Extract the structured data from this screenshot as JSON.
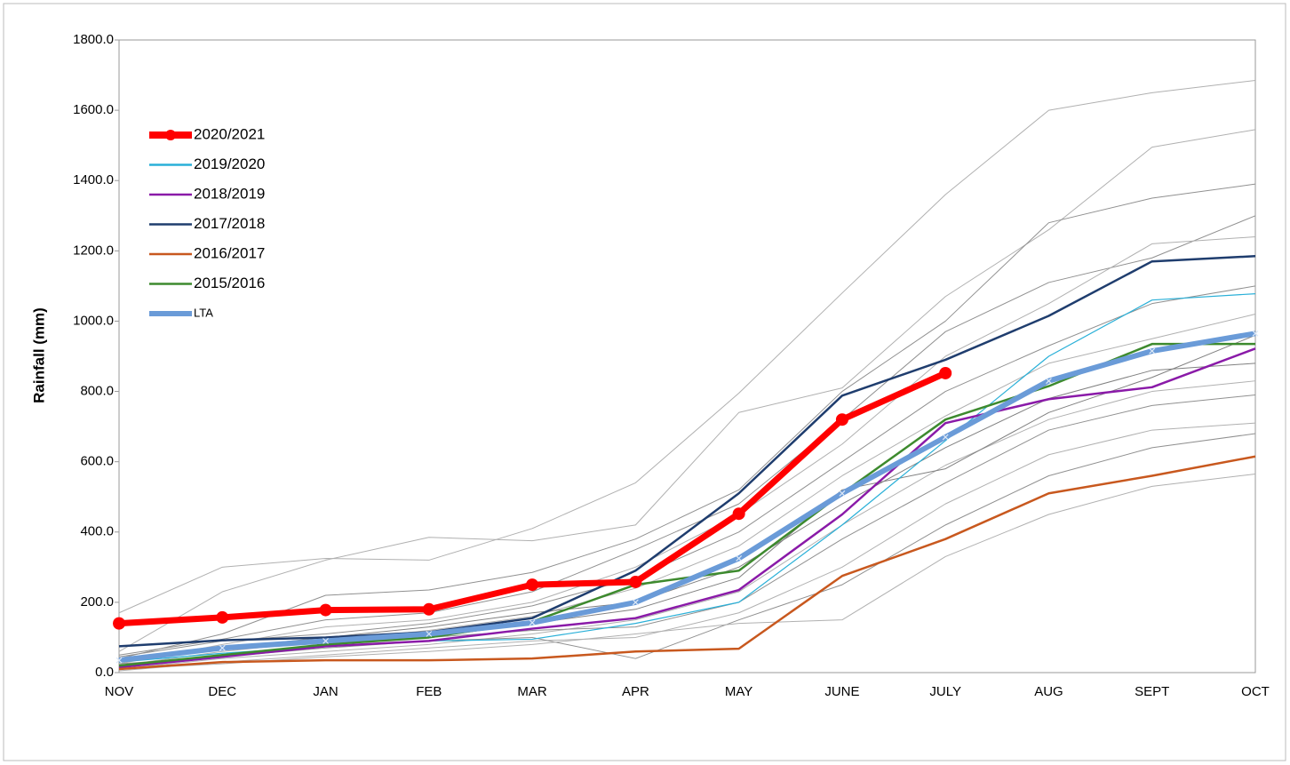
{
  "chart_data": {
    "type": "line",
    "y_label": "Rainfall (mm)",
    "categories": [
      "NOV",
      "DEC",
      "JAN",
      "FEB",
      "MAR",
      "APR",
      "MAY",
      "JUNE",
      "JULY",
      "AUG",
      "SEPT",
      "OCT"
    ],
    "ylim": [
      0,
      1800
    ],
    "yticks": [
      {
        "value": 0,
        "label": "0.0"
      },
      {
        "value": 200,
        "label": "200.0"
      },
      {
        "value": 400,
        "label": "400.0"
      },
      {
        "value": 600,
        "label": "600.0"
      },
      {
        "value": 800,
        "label": "800.0"
      },
      {
        "value": 1000,
        "label": "1000.0"
      },
      {
        "value": 1200,
        "label": "1200.0"
      },
      {
        "value": 1400,
        "label": "1400.0"
      },
      {
        "value": 1600,
        "label": "1600.0"
      },
      {
        "value": 1800,
        "label": "1800.0"
      }
    ],
    "legend": "upper left",
    "series": [
      {
        "color": "#b0b0b0",
        "values": [
          170,
          300,
          325,
          320,
          410,
          540,
          795,
          1080,
          1360,
          1600,
          1650,
          1685
        ]
      },
      {
        "color": "#b0b0b0",
        "values": [
          60,
          230,
          320,
          385,
          375,
          420,
          740,
          810,
          1070,
          1260,
          1495,
          1545
        ]
      },
      {
        "color": "#909090",
        "values": [
          40,
          110,
          220,
          235,
          285,
          380,
          520,
          800,
          1000,
          1280,
          1350,
          1390
        ]
      },
      {
        "color": "#909090",
        "values": [
          50,
          95,
          150,
          170,
          230,
          350,
          480,
          720,
          970,
          1110,
          1180,
          1300
        ]
      },
      {
        "color": "#b0b0b0",
        "values": [
          25,
          80,
          130,
          150,
          200,
          300,
          450,
          650,
          900,
          1050,
          1220,
          1240
        ]
      },
      {
        "color": "#909090",
        "values": [
          45,
          90,
          110,
          140,
          190,
          270,
          400,
          600,
          800,
          930,
          1050,
          1100
        ]
      },
      {
        "color": "#b0b0b0",
        "values": [
          20,
          60,
          90,
          120,
          160,
          240,
          360,
          560,
          730,
          880,
          950,
          1020
        ]
      },
      {
        "color": "#808080",
        "values": [
          30,
          70,
          100,
          130,
          170,
          200,
          300,
          480,
          640,
          780,
          860,
          880
        ]
      },
      {
        "color": "#b0b0b0",
        "values": [
          10,
          40,
          60,
          80,
          110,
          150,
          230,
          420,
          590,
          720,
          800,
          830
        ]
      },
      {
        "color": "#909090",
        "values": [
          15,
          50,
          80,
          100,
          120,
          130,
          200,
          380,
          540,
          690,
          760,
          790
        ]
      },
      {
        "color": "#b0b0b0",
        "values": [
          5,
          30,
          50,
          70,
          90,
          100,
          170,
          300,
          480,
          620,
          690,
          710
        ]
      },
      {
        "color": "#909090",
        "values": [
          25,
          45,
          70,
          90,
          100,
          40,
          150,
          250,
          420,
          560,
          640,
          680
        ]
      },
      {
        "color": "#b0b0b0",
        "values": [
          10,
          25,
          45,
          60,
          80,
          110,
          140,
          150,
          330,
          450,
          530,
          565
        ]
      },
      {
        "color": "#808080",
        "values": [
          35,
          65,
          85,
          100,
          140,
          180,
          270,
          520,
          580,
          740,
          840,
          960
        ]
      },
      {
        "name": "2019/2020",
        "color": "#2ab0d8",
        "values": [
          30,
          55,
          75,
          90,
          95,
          140,
          200,
          420,
          660,
          900,
          1060,
          1078
        ]
      },
      {
        "name": "2018/2019",
        "color": "#8a1aa8",
        "values": [
          15,
          45,
          75,
          90,
          125,
          155,
          235,
          450,
          710,
          778,
          812,
          922
        ]
      },
      {
        "name": "2017/2018",
        "color": "#1f3d6e",
        "values": [
          75,
          92,
          100,
          115,
          155,
          290,
          510,
          788,
          890,
          1015,
          1170,
          1185
        ]
      },
      {
        "name": "2016/2017",
        "color": "#c8581e",
        "values": [
          10,
          30,
          35,
          35,
          40,
          60,
          68,
          275,
          380,
          510,
          560,
          615
        ]
      },
      {
        "name": "2015/2016",
        "color": "#3d8a2e",
        "values": [
          20,
          50,
          80,
          100,
          145,
          250,
          290,
          510,
          720,
          815,
          935,
          935
        ]
      },
      {
        "name": "LTA",
        "color": "#6a9bd8",
        "values": [
          35,
          70,
          90,
          110,
          142,
          200,
          325,
          510,
          670,
          830,
          915,
          965
        ]
      },
      {
        "name": "2020/2021",
        "color": "#ff0000",
        "values": [
          140,
          157,
          178,
          180,
          250,
          258,
          452,
          720,
          852,
          null,
          null,
          null
        ]
      }
    ]
  }
}
